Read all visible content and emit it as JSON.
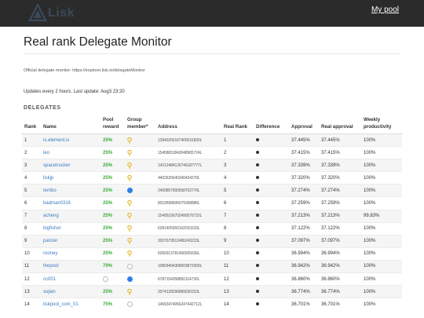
{
  "navbar": {
    "logo_text": "Lisk",
    "my_pool_label": "My pool"
  },
  "page": {
    "title": "Real rank Delegate Monitor",
    "official_text": "Official delegate monitor: https://explorer.lisk.io/delegateMonitor",
    "updates_text": "Updates every 2 hours. Last update: Aug3 23:20",
    "section_label": "DELEGATES"
  },
  "table": {
    "headers": {
      "rank": "Rank",
      "name": "Name",
      "pool_reward": "Pool reward",
      "group_member": "Group member*",
      "address": "Address",
      "real_rank": "Real Rank",
      "difference": "Difference",
      "approval": "Approval",
      "real_approval": "Real approval",
      "weekly_productivity": "Weekly productivity"
    },
    "rows": [
      {
        "rank": "1",
        "name": "ix.element.ix",
        "reward": "25%",
        "member": "pin",
        "address": "13943256167405531820L",
        "real_rank": "1",
        "approval": "37.445%",
        "real_approval": "37.445%",
        "productivity": "100%"
      },
      {
        "rank": "2",
        "name": "leo",
        "reward": "25%",
        "member": "pin",
        "address": "15458001843048965724L",
        "real_rank": "2",
        "approval": "37.415%",
        "real_approval": "37.415%",
        "productivity": "100%"
      },
      {
        "rank": "3",
        "name": "spacetrucker",
        "reward": "25%",
        "member": "pin",
        "address": "14212484126746187777L",
        "real_rank": "3",
        "approval": "37.339%",
        "real_approval": "37.339%",
        "productivity": "100%"
      },
      {
        "rank": "4",
        "name": "liskjp",
        "reward": "25%",
        "member": "pin",
        "address": "4402625640340434270L",
        "real_rank": "4",
        "approval": "37.320%",
        "real_approval": "37.320%",
        "productivity": "100%"
      },
      {
        "rank": "5",
        "name": "tembo",
        "reward": "25%",
        "member": "dot",
        "address": "2400857900558702776L",
        "real_rank": "5",
        "approval": "37.274%",
        "real_approval": "37.274%",
        "productivity": "100%"
      },
      {
        "rank": "6",
        "name": "badman0316",
        "reward": "25%",
        "member": "pin",
        "address": "8019598606079398886L",
        "real_rank": "6",
        "approval": "37.259%",
        "real_approval": "37.259%",
        "productivity": "100%"
      },
      {
        "rank": "7",
        "name": "acheng",
        "reward": "25%",
        "member": "pin",
        "address": "15495156702499576722L",
        "real_rank": "7",
        "approval": "37.213%",
        "real_approval": "37.213%",
        "productivity": "99.83%"
      },
      {
        "rank": "8",
        "name": "bigfisher",
        "reward": "25%",
        "member": "pin",
        "address": "6281405950162033315L",
        "real_rank": "8",
        "approval": "37.122%",
        "real_approval": "37.122%",
        "productivity": "100%"
      },
      {
        "rank": "9",
        "name": "panzer",
        "reward": "25%",
        "member": "pin",
        "address": "3207679512486243223L",
        "real_rank": "9",
        "approval": "37.097%",
        "real_approval": "37.097%",
        "productivity": "100%"
      },
      {
        "rank": "10",
        "name": "rooney",
        "reward": "25%",
        "member": "pin",
        "address": "6356913781456505636L",
        "real_rank": "10",
        "approval": "36.994%",
        "real_approval": "36.994%",
        "productivity": "100%"
      },
      {
        "rank": "11",
        "name": "thepool",
        "reward": "70%",
        "member": "empty",
        "address": "10809494368003872009L",
        "real_rank": "11",
        "approval": "36.942%",
        "real_approval": "36.942%",
        "productivity": "100%"
      },
      {
        "rank": "12",
        "name": "cc001",
        "reward": "",
        "member": "dot",
        "address": "6787154358850114730L",
        "real_rank": "12",
        "approval": "36.860%",
        "real_approval": "36.860%",
        "productivity": "100%"
      },
      {
        "rank": "13",
        "name": "xujian",
        "reward": "25%",
        "member": "pin",
        "address": "2074128296889030323L",
        "real_rank": "13",
        "approval": "36.774%",
        "real_approval": "36.774%",
        "productivity": "100%"
      },
      {
        "rank": "14",
        "name": "liskpool_com_01",
        "reward": "75%",
        "member": "empty",
        "address": "14593474056247442712L",
        "real_rank": "14",
        "approval": "36.701%",
        "real_approval": "36.701%",
        "productivity": "100%"
      }
    ]
  },
  "colors": {
    "navbar_bg": "#2b2b2b",
    "link": "#3a7bbf",
    "reward_green": "#3aaa35",
    "member_blue": "#2f7fe6",
    "pin_yellow": "#e6b422"
  }
}
